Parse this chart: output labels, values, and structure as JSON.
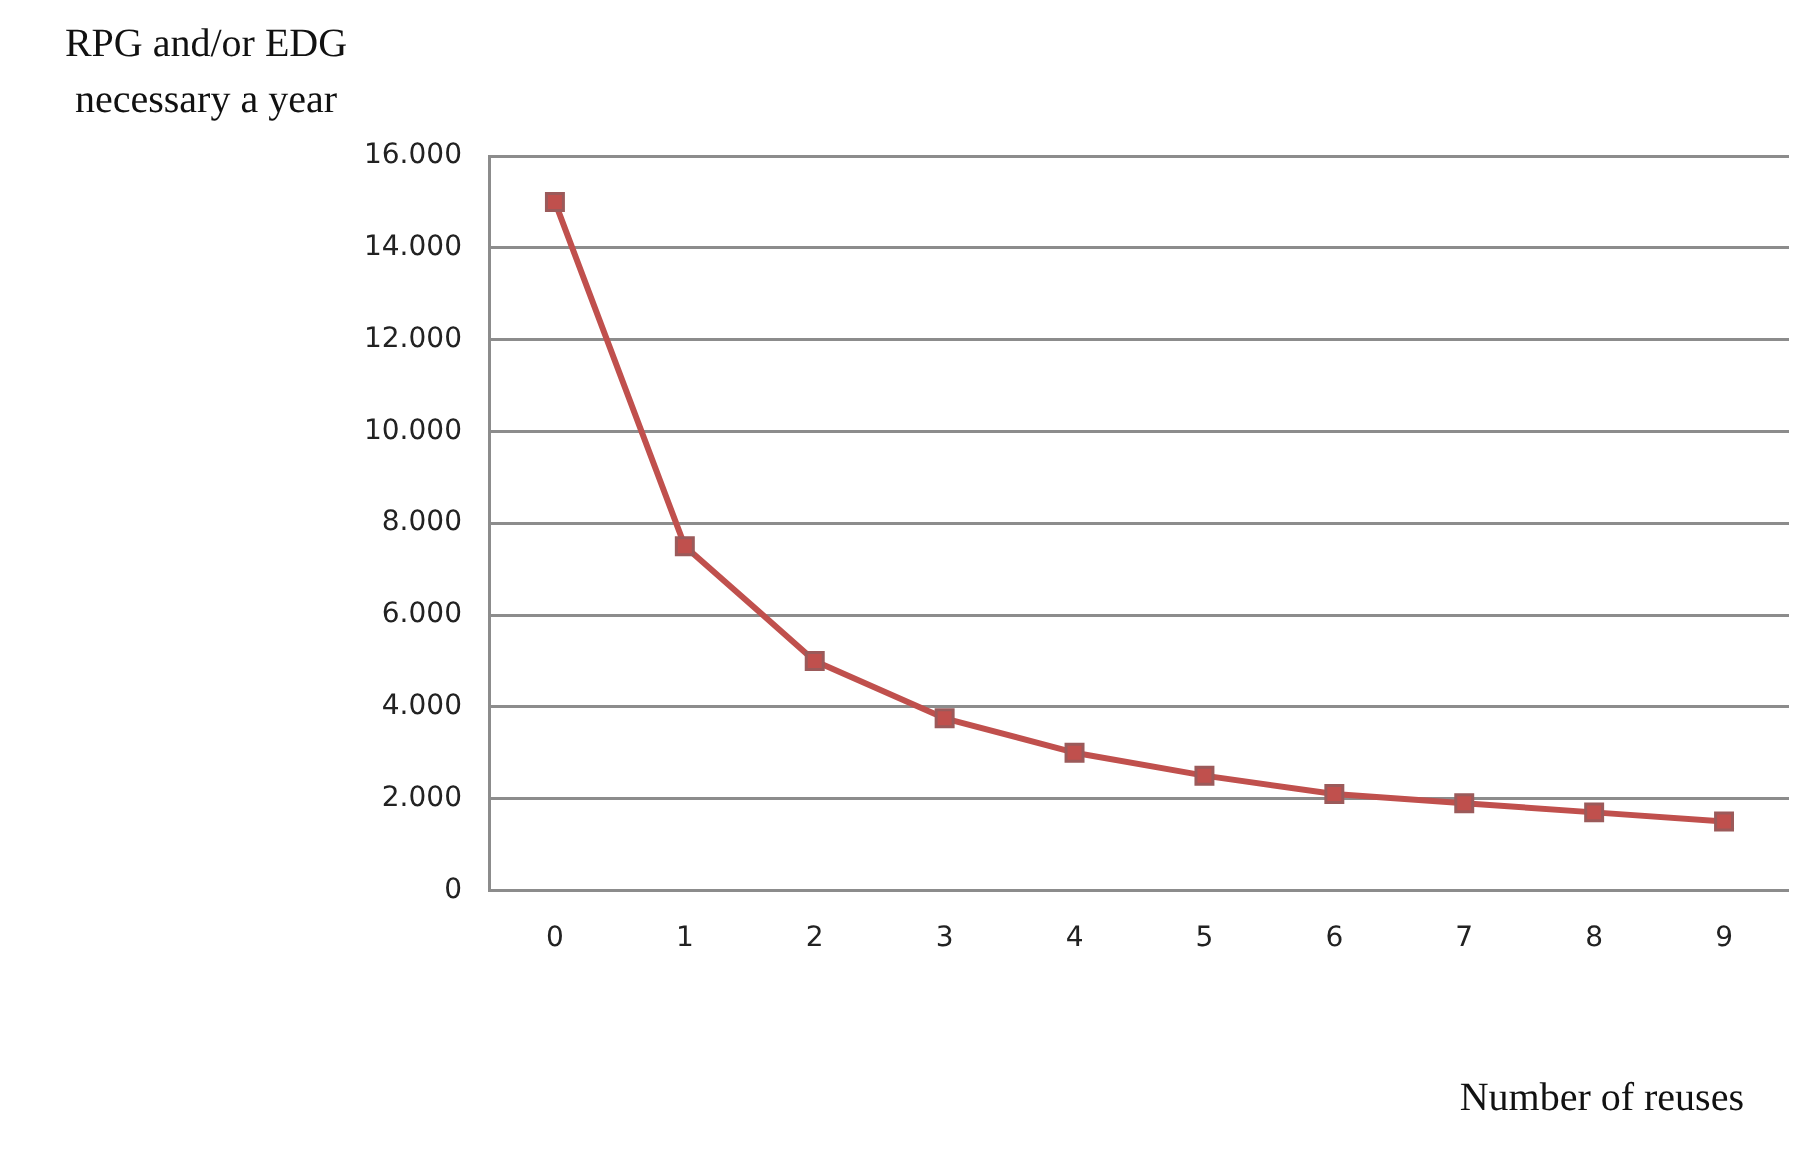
{
  "chart_data": {
    "type": "line",
    "xlabel": "Number of reuses",
    "ylabel": "RPG and/or EDG necessary a year",
    "categories": [
      "0",
      "1",
      "2",
      "3",
      "4",
      "5",
      "6",
      "7",
      "8",
      "9"
    ],
    "series": [
      {
        "color": "#c0504d",
        "values": [
          15000,
          7500,
          5000,
          3750,
          3000,
          2500,
          2100,
          1900,
          1700,
          1500
        ]
      }
    ],
    "ylim": [
      0,
      16000
    ],
    "yticks": [
      {
        "value": 0,
        "label": "0"
      },
      {
        "value": 2000,
        "label": "2.000"
      },
      {
        "value": 4000,
        "label": "4.000"
      },
      {
        "value": 6000,
        "label": "6.000"
      },
      {
        "value": 8000,
        "label": "8.000"
      },
      {
        "value": 10000,
        "label": "10.000"
      },
      {
        "value": 12000,
        "label": "12.000"
      },
      {
        "value": 14000,
        "label": "14.000"
      },
      {
        "value": 16000,
        "label": "16.000"
      }
    ],
    "grid": "y",
    "marker": "square",
    "line_style": "solid",
    "legend": false
  }
}
